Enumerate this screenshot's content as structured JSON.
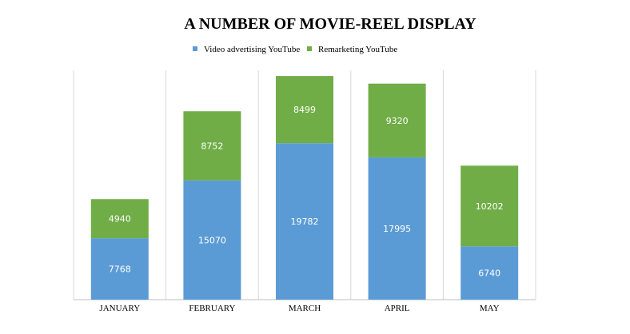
{
  "colors": {
    "series1": "#5b9bd5",
    "series2": "#70ad47",
    "grid": "#d9d9d9",
    "axis": "#bfbfbf"
  },
  "chart_data": {
    "type": "bar",
    "stacked": true,
    "title": "A NUMBER OF MOVIE-REEL DISPLAY",
    "categories": [
      "JANUARY",
      "FEBRUARY",
      "MARCH",
      "APRIL",
      "MAY"
    ],
    "series": [
      {
        "name": "Video advertising YouTube",
        "values": [
          7768,
          15070,
          19782,
          17995,
          6740
        ]
      },
      {
        "name": "Remarketing YouTube",
        "values": [
          4940,
          8752,
          8499,
          9320,
          10202
        ]
      }
    ],
    "ylim": [
      0,
      29000
    ],
    "legend": "top-center",
    "grid": "vertical separators",
    "data_labels": true
  }
}
